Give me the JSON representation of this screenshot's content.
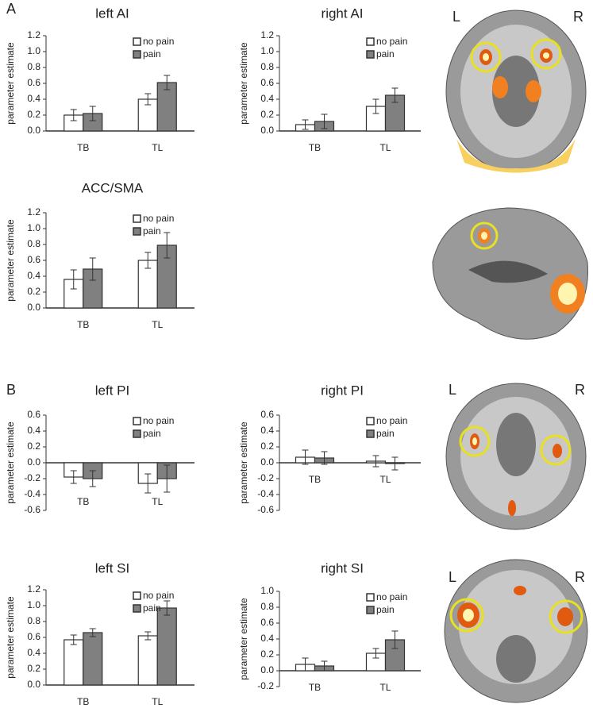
{
  "panel_labels": [
    "A",
    "B"
  ],
  "brain_images": [
    {
      "left": "L",
      "right": "R"
    },
    {},
    {
      "left": "L",
      "right": "R"
    },
    {
      "left": "L",
      "right": "R"
    }
  ],
  "chart_data": [
    {
      "type": "bar",
      "title": "left AI",
      "ylabel": "parameter estimate",
      "categories": [
        "TB",
        "TL"
      ],
      "series": [
        {
          "name": "no pain",
          "color": "#ffffff",
          "values": [
            0.2,
            0.4
          ],
          "errors": [
            0.07,
            0.07
          ]
        },
        {
          "name": "pain",
          "color": "#808080",
          "values": [
            0.22,
            0.61
          ],
          "errors": [
            0.09,
            0.09
          ]
        }
      ],
      "ylim": [
        0,
        1.2
      ],
      "yticks": [
        {
          "value": 0,
          "label": "0.0"
        },
        0.2,
        0.4,
        0.6,
        0.8,
        {
          "value": 1,
          "label": "1.0"
        },
        1.2
      ]
    },
    {
      "type": "bar",
      "title": "right AI",
      "ylabel": "parameter estimate",
      "categories": [
        "TB",
        "TL"
      ],
      "series": [
        {
          "name": "no pain",
          "color": "#ffffff",
          "values": [
            0.08,
            0.31
          ],
          "errors": [
            0.06,
            0.09
          ]
        },
        {
          "name": "pain",
          "color": "#808080",
          "values": [
            0.12,
            0.45
          ],
          "errors": [
            0.09,
            0.09
          ]
        }
      ],
      "ylim": [
        0,
        1.2
      ],
      "yticks": [
        {
          "value": 0,
          "label": "0.0"
        },
        0.2,
        0.4,
        0.6,
        0.8,
        {
          "value": 1,
          "label": "1.0"
        },
        1.2
      ]
    },
    {
      "type": "bar",
      "title": "ACC/SMA",
      "ylabel": "parameter estimate",
      "categories": [
        "TB",
        "TL"
      ],
      "series": [
        {
          "name": "no pain",
          "color": "#ffffff",
          "values": [
            0.36,
            0.6
          ],
          "errors": [
            0.12,
            0.1
          ]
        },
        {
          "name": "pain",
          "color": "#808080",
          "values": [
            0.49,
            0.79
          ],
          "errors": [
            0.14,
            0.16
          ]
        }
      ],
      "ylim": [
        0,
        1.2
      ],
      "yticks": [
        {
          "value": 0,
          "label": "0.0"
        },
        0.2,
        0.4,
        0.6,
        0.8,
        {
          "value": 1,
          "label": "1.0"
        },
        1.2
      ]
    },
    {
      "type": "bar",
      "title": "left PI",
      "ylabel": "parameter estimate",
      "categories": [
        "TB",
        "TL"
      ],
      "series": [
        {
          "name": "no pain",
          "color": "#ffffff",
          "values": [
            -0.18,
            -0.26
          ],
          "errors": [
            0.08,
            0.12
          ]
        },
        {
          "name": "pain",
          "color": "#808080",
          "values": [
            -0.2,
            -0.2
          ],
          "errors": [
            0.1,
            0.17
          ]
        }
      ],
      "ylim": [
        -0.6,
        0.6
      ],
      "yticks": [
        -0.6,
        -0.4,
        -0.2,
        {
          "value": 0,
          "label": "0.0"
        },
        0.2,
        0.4,
        0.6
      ]
    },
    {
      "type": "bar",
      "title": "right PI",
      "ylabel": "parameter estimate",
      "categories": [
        "TB",
        "TL"
      ],
      "series": [
        {
          "name": "no pain",
          "color": "#ffffff",
          "values": [
            0.07,
            0.02
          ],
          "errors": [
            0.09,
            0.07
          ]
        },
        {
          "name": "pain",
          "color": "#808080",
          "values": [
            0.06,
            -0.01
          ],
          "errors": [
            0.08,
            0.08
          ]
        }
      ],
      "ylim": [
        -0.6,
        0.6
      ],
      "yticks": [
        -0.6,
        -0.4,
        -0.2,
        {
          "value": 0,
          "label": "0.0"
        },
        0.2,
        0.4,
        0.6
      ]
    },
    {
      "type": "bar",
      "title": "left SI",
      "ylabel": "parameter estimate",
      "categories": [
        "TB",
        "TL"
      ],
      "series": [
        {
          "name": "no pain",
          "color": "#ffffff",
          "values": [
            0.57,
            0.62
          ],
          "errors": [
            0.06,
            0.05
          ]
        },
        {
          "name": "pain",
          "color": "#808080",
          "values": [
            0.66,
            0.97
          ],
          "errors": [
            0.05,
            0.09
          ]
        }
      ],
      "ylim": [
        0,
        1.2
      ],
      "yticks": [
        {
          "value": 0,
          "label": "0.0"
        },
        0.2,
        0.4,
        0.6,
        0.8,
        {
          "value": 1,
          "label": "1.0"
        },
        1.2
      ]
    },
    {
      "type": "bar",
      "title": "right SI",
      "ylabel": "parameter estimate",
      "categories": [
        "TB",
        "TL"
      ],
      "series": [
        {
          "name": "no pain",
          "color": "#ffffff",
          "values": [
            0.08,
            0.22
          ],
          "errors": [
            0.08,
            0.06
          ]
        },
        {
          "name": "pain",
          "color": "#808080",
          "values": [
            0.06,
            0.39
          ],
          "errors": [
            0.06,
            0.11
          ]
        }
      ],
      "ylim": [
        -0.2,
        1
      ],
      "yticks": [
        -0.2,
        {
          "value": 0,
          "label": "0.0"
        },
        0.2,
        0.4,
        0.6,
        0.8,
        {
          "value": 1,
          "label": "1.0"
        }
      ]
    }
  ]
}
